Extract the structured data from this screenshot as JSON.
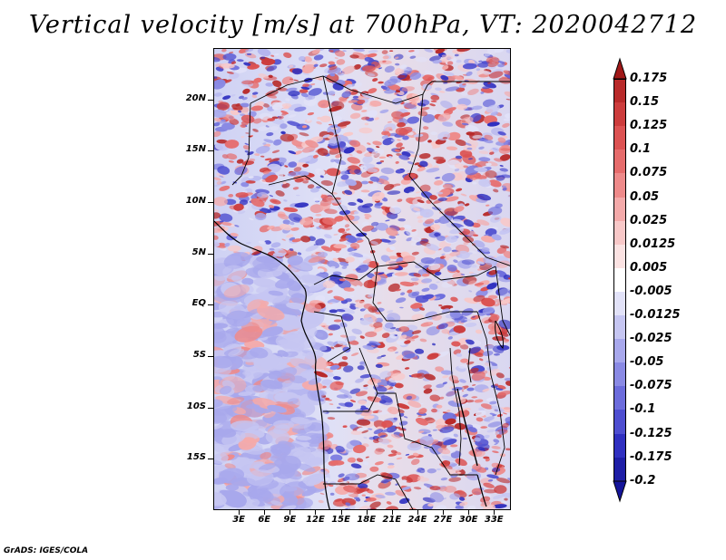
{
  "title": "Vertical velocity [m/s] at 700hPa, VT: 2020042712",
  "footer": "GrADS: IGES/COLA",
  "map": {
    "field": "Vertical velocity",
    "units": "m/s",
    "level": "700hPa",
    "valid_time": "2020042712",
    "lon_range": [
      0,
      35
    ],
    "lat_range": [
      -20,
      25
    ],
    "y_ticks": [
      {
        "label": "20N",
        "lat": 20
      },
      {
        "label": "15N",
        "lat": 15
      },
      {
        "label": "10N",
        "lat": 10
      },
      {
        "label": "5N",
        "lat": 5
      },
      {
        "label": "EQ",
        "lat": 0
      },
      {
        "label": "5S",
        "lat": -5
      },
      {
        "label": "10S",
        "lat": -10
      },
      {
        "label": "15S",
        "lat": -15
      }
    ],
    "x_ticks": [
      {
        "label": "3E",
        "lon": 3
      },
      {
        "label": "6E",
        "lon": 6
      },
      {
        "label": "9E",
        "lon": 9
      },
      {
        "label": "12E",
        "lon": 12
      },
      {
        "label": "15E",
        "lon": 15
      },
      {
        "label": "18E",
        "lon": 18
      },
      {
        "label": "21E",
        "lon": 21
      },
      {
        "label": "24E",
        "lon": 24
      },
      {
        "label": "27E",
        "lon": 27
      },
      {
        "label": "30E",
        "lon": 30
      },
      {
        "label": "33E",
        "lon": 33
      }
    ]
  },
  "colorbar": {
    "levels": [
      "0.175",
      "0.15",
      "0.125",
      "0.1",
      "0.075",
      "0.05",
      "0.025",
      "0.0125",
      "0.005",
      "-0.005",
      "-0.0125",
      "-0.025",
      "-0.05",
      "-0.075",
      "-0.1",
      "-0.125",
      "-0.175",
      "-0.2"
    ],
    "colors": [
      "#a01818",
      "#b82a2a",
      "#cc3c3c",
      "#dc5252",
      "#e66c6c",
      "#ee8a8a",
      "#f4aaaa",
      "#f8c8c8",
      "#fbe2e2",
      "#ffffff",
      "#e2e2f8",
      "#c6c6f2",
      "#a8a8ec",
      "#8a8ae4",
      "#6c6cdc",
      "#4e4ed0",
      "#3030c0",
      "#1e1ea6",
      "#0c0c8c"
    ],
    "top_arrow_color": "#a01818",
    "bottom_arrow_color": "#14149a"
  }
}
